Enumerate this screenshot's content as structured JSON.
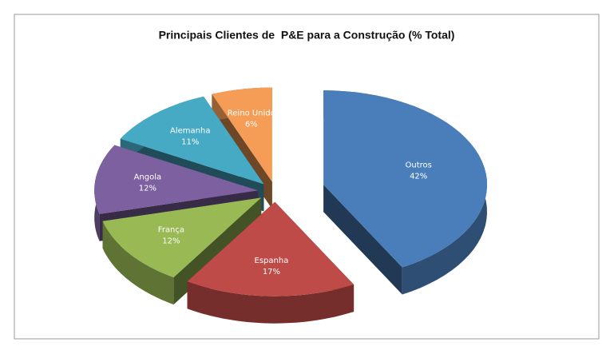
{
  "chart_data": {
    "type": "pie",
    "title": "Principais Clientes de  P&E para a Construção (% Total)",
    "categories": [
      "Outros",
      "Espanha",
      "França",
      "Angola",
      "Alemanha",
      "Reino Unido"
    ],
    "values": [
      42,
      17,
      12,
      12,
      11,
      6
    ],
    "value_labels": [
      "42%",
      "17%",
      "12%",
      "12%",
      "11%",
      "6%"
    ],
    "colors": [
      "#4a7ebb",
      "#be4b48",
      "#98b954",
      "#7d60a0",
      "#46aac5",
      "#f59d56"
    ]
  }
}
